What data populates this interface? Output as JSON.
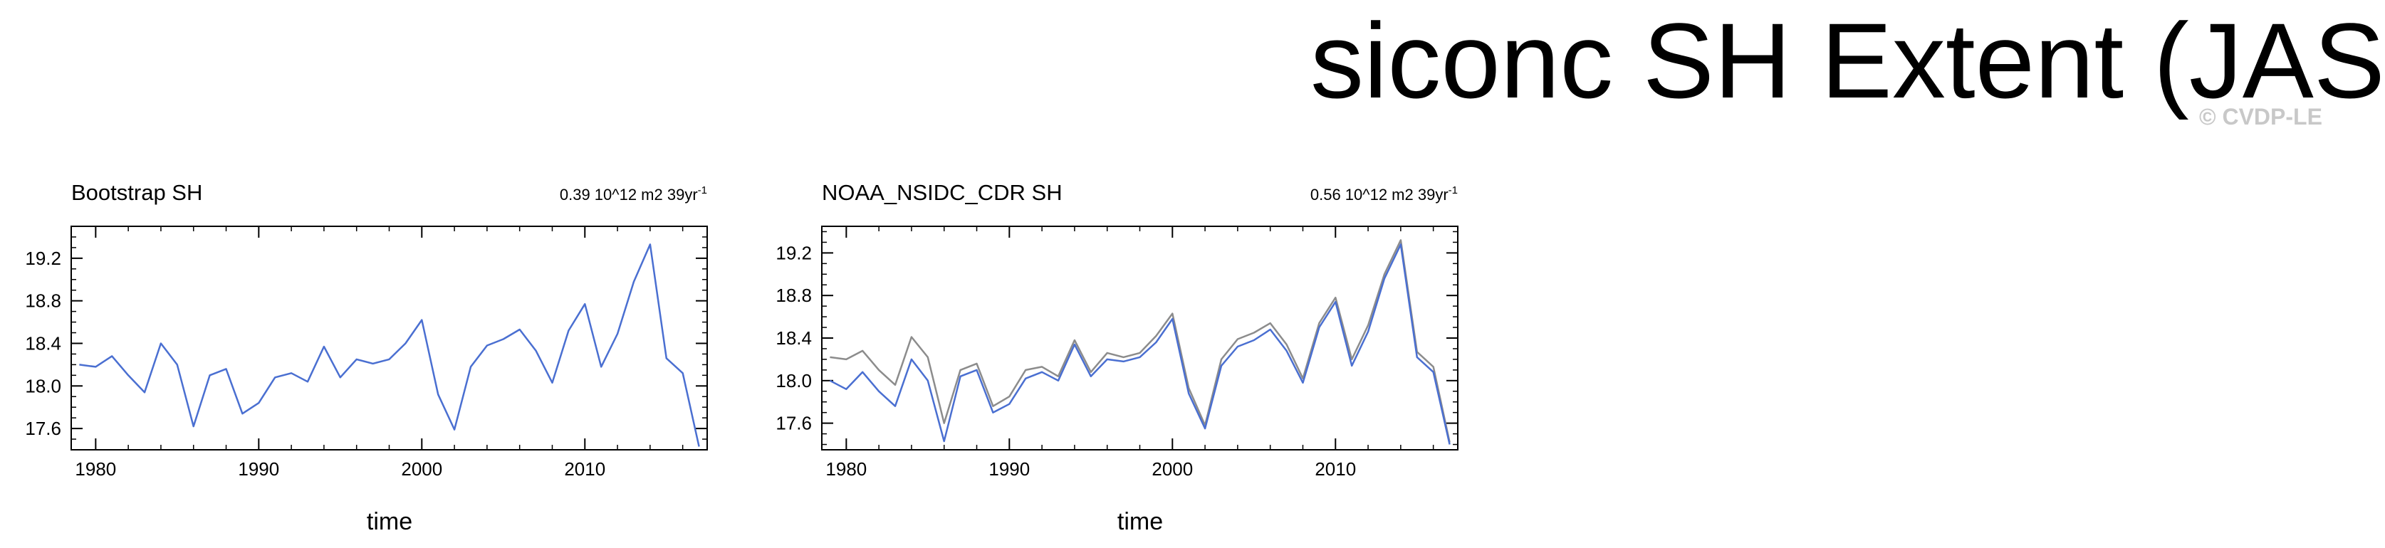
{
  "page": {
    "title": "siconc SH Extent (JAS)",
    "watermark": "© CVDP-LE"
  },
  "chart_data": [
    {
      "type": "line",
      "title": "Bootstrap SH",
      "trend_label": "0.39 10^12 m2 39yr",
      "trend_superscript": "-1",
      "xlabel": "time",
      "ylabel": "",
      "xlim": [
        1978.5,
        2017.5
      ],
      "ylim": [
        17.4,
        19.5
      ],
      "x_ticks": [
        1980,
        1990,
        2000,
        2010
      ],
      "y_ticks": [
        17.6,
        18.0,
        18.4,
        18.8,
        19.2
      ],
      "x": [
        1979,
        1980,
        1981,
        1982,
        1983,
        1984,
        1985,
        1986,
        1987,
        1988,
        1989,
        1990,
        1991,
        1992,
        1993,
        1994,
        1995,
        1996,
        1997,
        1998,
        1999,
        2000,
        2001,
        2002,
        2003,
        2004,
        2005,
        2006,
        2007,
        2008,
        2009,
        2010,
        2011,
        2012,
        2013,
        2014,
        2015,
        2016,
        2017
      ],
      "series": [
        {
          "color": "#4a6fd1",
          "values": [
            18.2,
            18.18,
            18.28,
            18.1,
            17.94,
            18.4,
            18.2,
            17.62,
            18.1,
            18.16,
            17.74,
            17.84,
            18.08,
            18.12,
            18.04,
            18.37,
            18.08,
            18.25,
            18.21,
            18.25,
            18.4,
            18.62,
            17.92,
            17.59,
            18.18,
            18.38,
            18.44,
            18.53,
            18.33,
            18.03,
            18.52,
            18.77,
            18.18,
            18.49,
            18.98,
            19.33,
            18.26,
            18.12,
            17.43
          ]
        }
      ]
    },
    {
      "type": "line",
      "title": "NOAA_NSIDC_CDR SH",
      "trend_label": "0.56 10^12 m2 39yr",
      "trend_superscript": "-1",
      "xlabel": "time",
      "ylabel": "",
      "xlim": [
        1978.5,
        2017.5
      ],
      "ylim": [
        17.35,
        19.45
      ],
      "x_ticks": [
        1980,
        1990,
        2000,
        2010
      ],
      "y_ticks": [
        17.6,
        18.0,
        18.4,
        18.8,
        19.2
      ],
      "x": [
        1979,
        1980,
        1981,
        1982,
        1983,
        1984,
        1985,
        1986,
        1987,
        1988,
        1989,
        1990,
        1991,
        1992,
        1993,
        1994,
        1995,
        1996,
        1997,
        1998,
        1999,
        2000,
        2001,
        2002,
        2003,
        2004,
        2005,
        2006,
        2007,
        2008,
        2009,
        2010,
        2011,
        2012,
        2013,
        2014,
        2015,
        2016,
        2017
      ],
      "series": [
        {
          "color": "#8c8c8c",
          "values": [
            18.22,
            18.2,
            18.28,
            18.1,
            17.96,
            18.41,
            18.22,
            17.6,
            18.1,
            18.16,
            17.76,
            17.85,
            18.1,
            18.13,
            18.04,
            18.38,
            18.08,
            18.26,
            18.22,
            18.26,
            18.42,
            18.63,
            17.93,
            17.58,
            18.2,
            18.39,
            18.45,
            18.54,
            18.34,
            18.02,
            18.54,
            18.78,
            18.2,
            18.52,
            19.0,
            19.32,
            18.27,
            18.13,
            17.42
          ]
        },
        {
          "color": "#4a6fd1",
          "values": [
            18.0,
            17.92,
            18.08,
            17.9,
            17.76,
            18.2,
            18.0,
            17.43,
            18.04,
            18.1,
            17.7,
            17.78,
            18.02,
            18.08,
            18.0,
            18.34,
            18.04,
            18.2,
            18.18,
            18.22,
            18.36,
            18.58,
            17.88,
            17.55,
            18.14,
            18.32,
            18.38,
            18.48,
            18.28,
            17.98,
            18.5,
            18.74,
            18.14,
            18.46,
            18.96,
            19.28,
            18.22,
            18.08,
            17.4
          ]
        }
      ]
    }
  ]
}
